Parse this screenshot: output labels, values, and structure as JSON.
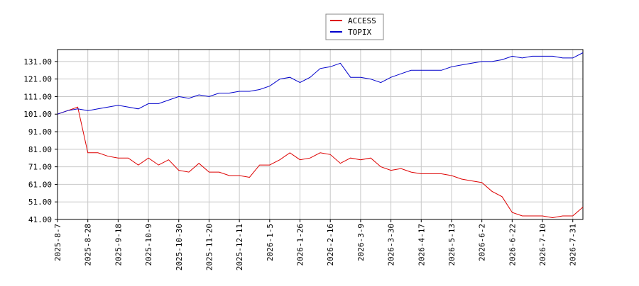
{
  "chart_data": {
    "type": "line",
    "categories": [
      "2025-8-7",
      null,
      null,
      "2025-8-28",
      null,
      null,
      "2025-9-18",
      null,
      null,
      "2025-10-9",
      null,
      null,
      "2025-10-30",
      null,
      null,
      "2025-11-20",
      null,
      null,
      "2025-12-11",
      null,
      null,
      "2026-1-5",
      null,
      null,
      "2026-1-26",
      null,
      null,
      "2026-2-16",
      null,
      null,
      "2026-3-9",
      null,
      null,
      "2026-3-30",
      null,
      null,
      "2026-4-17",
      null,
      null,
      "2026-5-13",
      null,
      null,
      "2026-6-2",
      null,
      null,
      "2026-6-22",
      null,
      null,
      "2026-7-10",
      null,
      null,
      "2026-7-31",
      null
    ],
    "series": [
      {
        "name": "ACCESS",
        "color": "#dd0000",
        "values": [
          101,
          103,
          105,
          79,
          79,
          77,
          76,
          76,
          72,
          76,
          72,
          75,
          69,
          68,
          73,
          68,
          68,
          66,
          66,
          65,
          72,
          72,
          75,
          79,
          75,
          76,
          79,
          78,
          73,
          76,
          75,
          76,
          71,
          69,
          70,
          68,
          67,
          67,
          67,
          66,
          64,
          63,
          62,
          57,
          54,
          45,
          43,
          43,
          43,
          42,
          43,
          43,
          48
        ]
      },
      {
        "name": "TOPIX",
        "color": "#0000cc",
        "values": [
          101,
          103,
          104,
          103,
          104,
          105,
          106,
          105,
          104,
          107,
          107,
          109,
          111,
          110,
          112,
          111,
          113,
          113,
          114,
          114,
          115,
          117,
          121,
          122,
          119,
          122,
          127,
          128,
          130,
          122,
          122,
          121,
          119,
          122,
          124,
          126,
          126,
          126,
          126,
          128,
          129,
          130,
          131,
          131,
          132,
          134,
          133,
          134,
          134,
          134,
          133,
          133,
          136
        ]
      }
    ],
    "ylim": [
      41,
      137.8
    ],
    "yticks": [
      {
        "value": 41,
        "label": "41.00"
      },
      {
        "value": 51,
        "label": "51.00"
      },
      {
        "value": 61,
        "label": "61.00"
      },
      {
        "value": 71,
        "label": "71.00"
      },
      {
        "value": 81,
        "label": "81.00"
      },
      {
        "value": 91,
        "label": "91.00"
      },
      {
        "value": 101,
        "label": "101.00"
      },
      {
        "value": 111,
        "label": "111.00"
      },
      {
        "value": 121,
        "label": "121.00"
      },
      {
        "value": 131,
        "label": "131.00"
      }
    ],
    "grid": true,
    "legend": "top"
  }
}
